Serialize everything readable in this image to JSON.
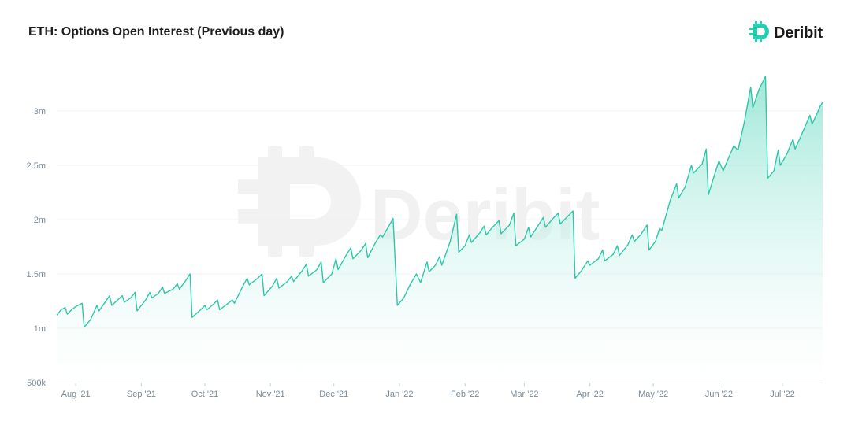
{
  "header": {
    "title": "ETH: Options Open Interest (Previous day)",
    "brand_name": "Deribit",
    "brand_icon": "deribit-logo-icon"
  },
  "watermark": {
    "text": "Deribit"
  },
  "colors": {
    "line": "#2ec7aa",
    "fill_top": "#7fe0cc",
    "fill_bottom": "#ffffff",
    "grid": "#eef1f3",
    "axis_text": "#7a8a99",
    "brand": "#1fd1b0"
  },
  "chart_data": {
    "type": "area",
    "title": "ETH: Options Open Interest (Previous day)",
    "xlabel": "",
    "ylabel": "",
    "grid": true,
    "y_ticks": [
      {
        "value": 500000,
        "label": "500k"
      },
      {
        "value": 1000000,
        "label": "1m"
      },
      {
        "value": 1500000,
        "label": "1.5m"
      },
      {
        "value": 2000000,
        "label": "2m"
      },
      {
        "value": 2500000,
        "label": "2.5m"
      },
      {
        "value": 3000000,
        "label": "3m"
      }
    ],
    "x_ticks": [
      {
        "value": "2021-08-01",
        "label": "Aug '21"
      },
      {
        "value": "2021-09-01",
        "label": "Sep '21"
      },
      {
        "value": "2021-10-01",
        "label": "Oct '21"
      },
      {
        "value": "2021-11-01",
        "label": "Nov '21"
      },
      {
        "value": "2021-12-01",
        "label": "Dec '21"
      },
      {
        "value": "2022-01-01",
        "label": "Jan '22"
      },
      {
        "value": "2022-02-01",
        "label": "Feb '22"
      },
      {
        "value": "2022-03-01",
        "label": "Mar '22"
      },
      {
        "value": "2022-04-01",
        "label": "Apr '22"
      },
      {
        "value": "2022-05-01",
        "label": "May '22"
      },
      {
        "value": "2022-06-01",
        "label": "Jun '22"
      },
      {
        "value": "2022-07-01",
        "label": "Jul '22"
      }
    ],
    "xlim": [
      "2021-07-23",
      "2022-07-20"
    ],
    "ylim": [
      500000,
      3500000
    ],
    "series": [
      {
        "name": "",
        "points": [
          [
            "2021-07-23",
            1120000
          ],
          [
            "2021-07-25",
            1170000
          ],
          [
            "2021-07-27",
            1190000
          ],
          [
            "2021-07-28",
            1130000
          ],
          [
            "2021-07-30",
            1170000
          ],
          [
            "2021-08-01",
            1200000
          ],
          [
            "2021-08-04",
            1230000
          ],
          [
            "2021-08-05",
            1010000
          ],
          [
            "2021-08-08",
            1080000
          ],
          [
            "2021-08-11",
            1210000
          ],
          [
            "2021-08-12",
            1160000
          ],
          [
            "2021-08-17",
            1300000
          ],
          [
            "2021-08-18",
            1210000
          ],
          [
            "2021-08-23",
            1300000
          ],
          [
            "2021-08-24",
            1240000
          ],
          [
            "2021-08-27",
            1280000
          ],
          [
            "2021-08-29",
            1330000
          ],
          [
            "2021-08-30",
            1160000
          ],
          [
            "2021-09-03",
            1260000
          ],
          [
            "2021-09-05",
            1330000
          ],
          [
            "2021-09-06",
            1280000
          ],
          [
            "2021-09-09",
            1320000
          ],
          [
            "2021-09-11",
            1380000
          ],
          [
            "2021-09-12",
            1320000
          ],
          [
            "2021-09-16",
            1360000
          ],
          [
            "2021-09-18",
            1410000
          ],
          [
            "2021-09-19",
            1360000
          ],
          [
            "2021-09-22",
            1440000
          ],
          [
            "2021-09-24",
            1500000
          ],
          [
            "2021-09-25",
            1100000
          ],
          [
            "2021-09-29",
            1170000
          ],
          [
            "2021-10-01",
            1210000
          ],
          [
            "2021-10-02",
            1170000
          ],
          [
            "2021-10-05",
            1220000
          ],
          [
            "2021-10-07",
            1260000
          ],
          [
            "2021-10-08",
            1170000
          ],
          [
            "2021-10-12",
            1230000
          ],
          [
            "2021-10-14",
            1260000
          ],
          [
            "2021-10-15",
            1230000
          ],
          [
            "2021-10-19",
            1390000
          ],
          [
            "2021-10-21",
            1460000
          ],
          [
            "2021-10-22",
            1400000
          ],
          [
            "2021-10-26",
            1460000
          ],
          [
            "2021-10-28",
            1500000
          ],
          [
            "2021-10-29",
            1300000
          ],
          [
            "2021-11-02",
            1390000
          ],
          [
            "2021-11-04",
            1460000
          ],
          [
            "2021-11-05",
            1370000
          ],
          [
            "2021-11-09",
            1430000
          ],
          [
            "2021-11-11",
            1480000
          ],
          [
            "2021-11-12",
            1430000
          ],
          [
            "2021-11-16",
            1530000
          ],
          [
            "2021-11-18",
            1590000
          ],
          [
            "2021-11-19",
            1480000
          ],
          [
            "2021-11-23",
            1540000
          ],
          [
            "2021-11-25",
            1610000
          ],
          [
            "2021-11-26",
            1420000
          ],
          [
            "2021-11-30",
            1500000
          ],
          [
            "2021-12-02",
            1640000
          ],
          [
            "2021-12-03",
            1540000
          ],
          [
            "2021-12-07",
            1680000
          ],
          [
            "2021-12-09",
            1740000
          ],
          [
            "2021-12-10",
            1640000
          ],
          [
            "2021-12-14",
            1720000
          ],
          [
            "2021-12-16",
            1780000
          ],
          [
            "2021-12-17",
            1650000
          ],
          [
            "2021-12-21",
            1800000
          ],
          [
            "2021-12-23",
            1860000
          ],
          [
            "2021-12-24",
            1840000
          ],
          [
            "2021-12-29",
            2010000
          ],
          [
            "2021-12-31",
            1210000
          ],
          [
            "2022-01-03",
            1280000
          ],
          [
            "2022-01-06",
            1400000
          ],
          [
            "2022-01-09",
            1500000
          ],
          [
            "2022-01-11",
            1420000
          ],
          [
            "2022-01-14",
            1610000
          ],
          [
            "2022-01-15",
            1520000
          ],
          [
            "2022-01-18",
            1580000
          ],
          [
            "2022-01-20",
            1660000
          ],
          [
            "2022-01-21",
            1580000
          ],
          [
            "2022-01-25",
            1800000
          ],
          [
            "2022-01-28",
            2050000
          ],
          [
            "2022-01-29",
            1700000
          ],
          [
            "2022-02-01",
            1760000
          ],
          [
            "2022-02-03",
            1860000
          ],
          [
            "2022-02-04",
            1790000
          ],
          [
            "2022-02-08",
            1880000
          ],
          [
            "2022-02-10",
            1940000
          ],
          [
            "2022-02-11",
            1860000
          ],
          [
            "2022-02-14",
            1930000
          ],
          [
            "2022-02-17",
            1990000
          ],
          [
            "2022-02-18",
            1870000
          ],
          [
            "2022-02-22",
            1950000
          ],
          [
            "2022-02-24",
            2060000
          ],
          [
            "2022-02-25",
            1760000
          ],
          [
            "2022-03-01",
            1820000
          ],
          [
            "2022-03-03",
            1930000
          ],
          [
            "2022-03-04",
            1840000
          ],
          [
            "2022-03-08",
            1960000
          ],
          [
            "2022-03-10",
            2020000
          ],
          [
            "2022-03-11",
            1930000
          ],
          [
            "2022-03-15",
            2020000
          ],
          [
            "2022-03-17",
            2060000
          ],
          [
            "2022-03-18",
            1960000
          ],
          [
            "2022-03-21",
            2020000
          ],
          [
            "2022-03-24",
            2080000
          ],
          [
            "2022-03-25",
            1460000
          ],
          [
            "2022-03-28",
            1530000
          ],
          [
            "2022-03-31",
            1620000
          ],
          [
            "2022-04-01",
            1580000
          ],
          [
            "2022-04-05",
            1640000
          ],
          [
            "2022-04-07",
            1720000
          ],
          [
            "2022-04-08",
            1620000
          ],
          [
            "2022-04-12",
            1680000
          ],
          [
            "2022-04-14",
            1760000
          ],
          [
            "2022-04-15",
            1670000
          ],
          [
            "2022-04-19",
            1770000
          ],
          [
            "2022-04-21",
            1860000
          ],
          [
            "2022-04-22",
            1800000
          ],
          [
            "2022-04-25",
            1860000
          ],
          [
            "2022-04-28",
            1950000
          ],
          [
            "2022-04-29",
            1720000
          ],
          [
            "2022-05-02",
            1800000
          ],
          [
            "2022-05-04",
            1920000
          ],
          [
            "2022-05-05",
            1900000
          ],
          [
            "2022-05-09",
            2180000
          ],
          [
            "2022-05-12",
            2330000
          ],
          [
            "2022-05-13",
            2200000
          ],
          [
            "2022-05-16",
            2300000
          ],
          [
            "2022-05-19",
            2500000
          ],
          [
            "2022-05-20",
            2430000
          ],
          [
            "2022-05-24",
            2510000
          ],
          [
            "2022-05-26",
            2650000
          ],
          [
            "2022-05-27",
            2230000
          ],
          [
            "2022-05-30",
            2420000
          ],
          [
            "2022-06-01",
            2540000
          ],
          [
            "2022-06-03",
            2450000
          ],
          [
            "2022-06-06",
            2590000
          ],
          [
            "2022-06-08",
            2680000
          ],
          [
            "2022-06-10",
            2640000
          ],
          [
            "2022-06-13",
            2900000
          ],
          [
            "2022-06-16",
            3220000
          ],
          [
            "2022-06-17",
            3030000
          ],
          [
            "2022-06-20",
            3200000
          ],
          [
            "2022-06-23",
            3320000
          ],
          [
            "2022-06-24",
            2380000
          ],
          [
            "2022-06-27",
            2450000
          ],
          [
            "2022-06-29",
            2640000
          ],
          [
            "2022-06-30",
            2500000
          ],
          [
            "2022-07-03",
            2600000
          ],
          [
            "2022-07-06",
            2740000
          ],
          [
            "2022-07-07",
            2650000
          ],
          [
            "2022-07-10",
            2780000
          ],
          [
            "2022-07-14",
            2960000
          ],
          [
            "2022-07-15",
            2880000
          ],
          [
            "2022-07-17",
            2960000
          ],
          [
            "2022-07-19",
            3050000
          ],
          [
            "2022-07-20",
            3080000
          ]
        ]
      }
    ]
  }
}
